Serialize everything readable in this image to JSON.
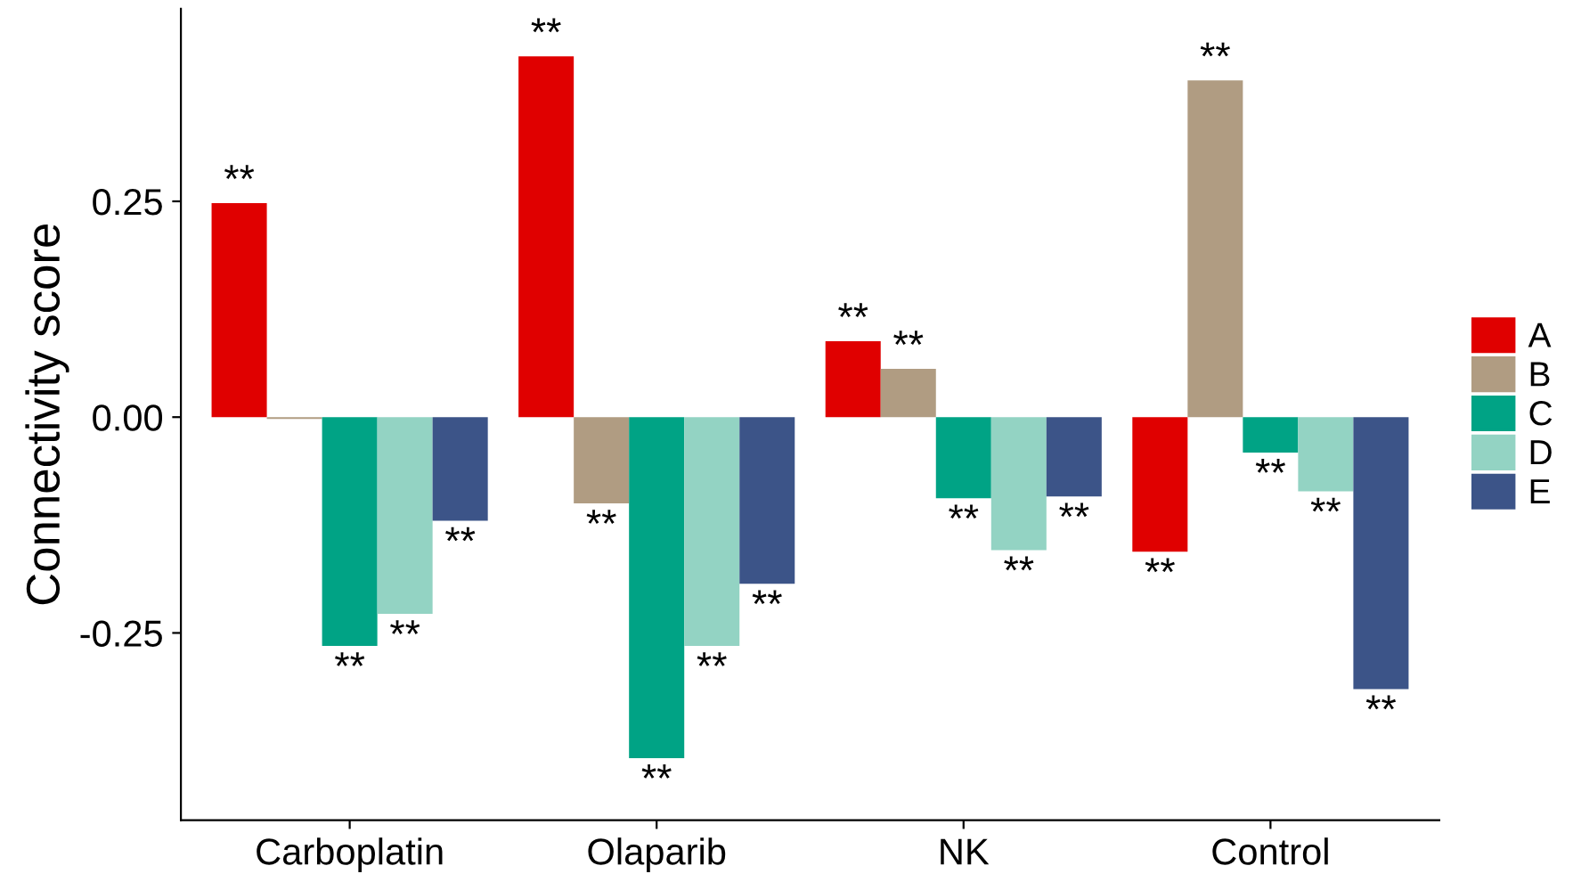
{
  "chart_data": {
    "type": "bar",
    "ylabel": "Connectivity score",
    "categories": [
      "Carboplatin",
      "Olaparib",
      "NK",
      "Control"
    ],
    "series": [
      {
        "name": "A",
        "color": "#e00000",
        "values": [
          0.248,
          0.418,
          0.088,
          -0.156
        ],
        "value_labels": [
          "**",
          "**",
          "**",
          "**"
        ]
      },
      {
        "name": "B",
        "color": "#b09c82",
        "values": [
          -0.002,
          -0.1,
          0.056,
          0.39
        ],
        "value_labels": [
          null,
          "**",
          "**",
          "**"
        ]
      },
      {
        "name": "C",
        "color": "#00a385",
        "values": [
          -0.265,
          -0.395,
          -0.094,
          -0.041
        ],
        "value_labels": [
          "**",
          "**",
          "**",
          "**"
        ]
      },
      {
        "name": "D",
        "color": "#93d3c3",
        "values": [
          -0.228,
          -0.265,
          -0.154,
          -0.086
        ],
        "value_labels": [
          "**",
          "**",
          "**",
          "**"
        ]
      },
      {
        "name": "E",
        "color": "#3c5488",
        "values": [
          -0.12,
          -0.193,
          -0.092,
          -0.315
        ],
        "value_labels": [
          "**",
          "**",
          "**",
          "**"
        ]
      }
    ],
    "ylim": [
      -0.467,
      0.473
    ],
    "yticks": [
      {
        "value": -0.25,
        "label": "-0.25"
      },
      {
        "value": 0,
        "label": "0.00"
      },
      0.25
    ],
    "grid": false,
    "legend": "right"
  }
}
